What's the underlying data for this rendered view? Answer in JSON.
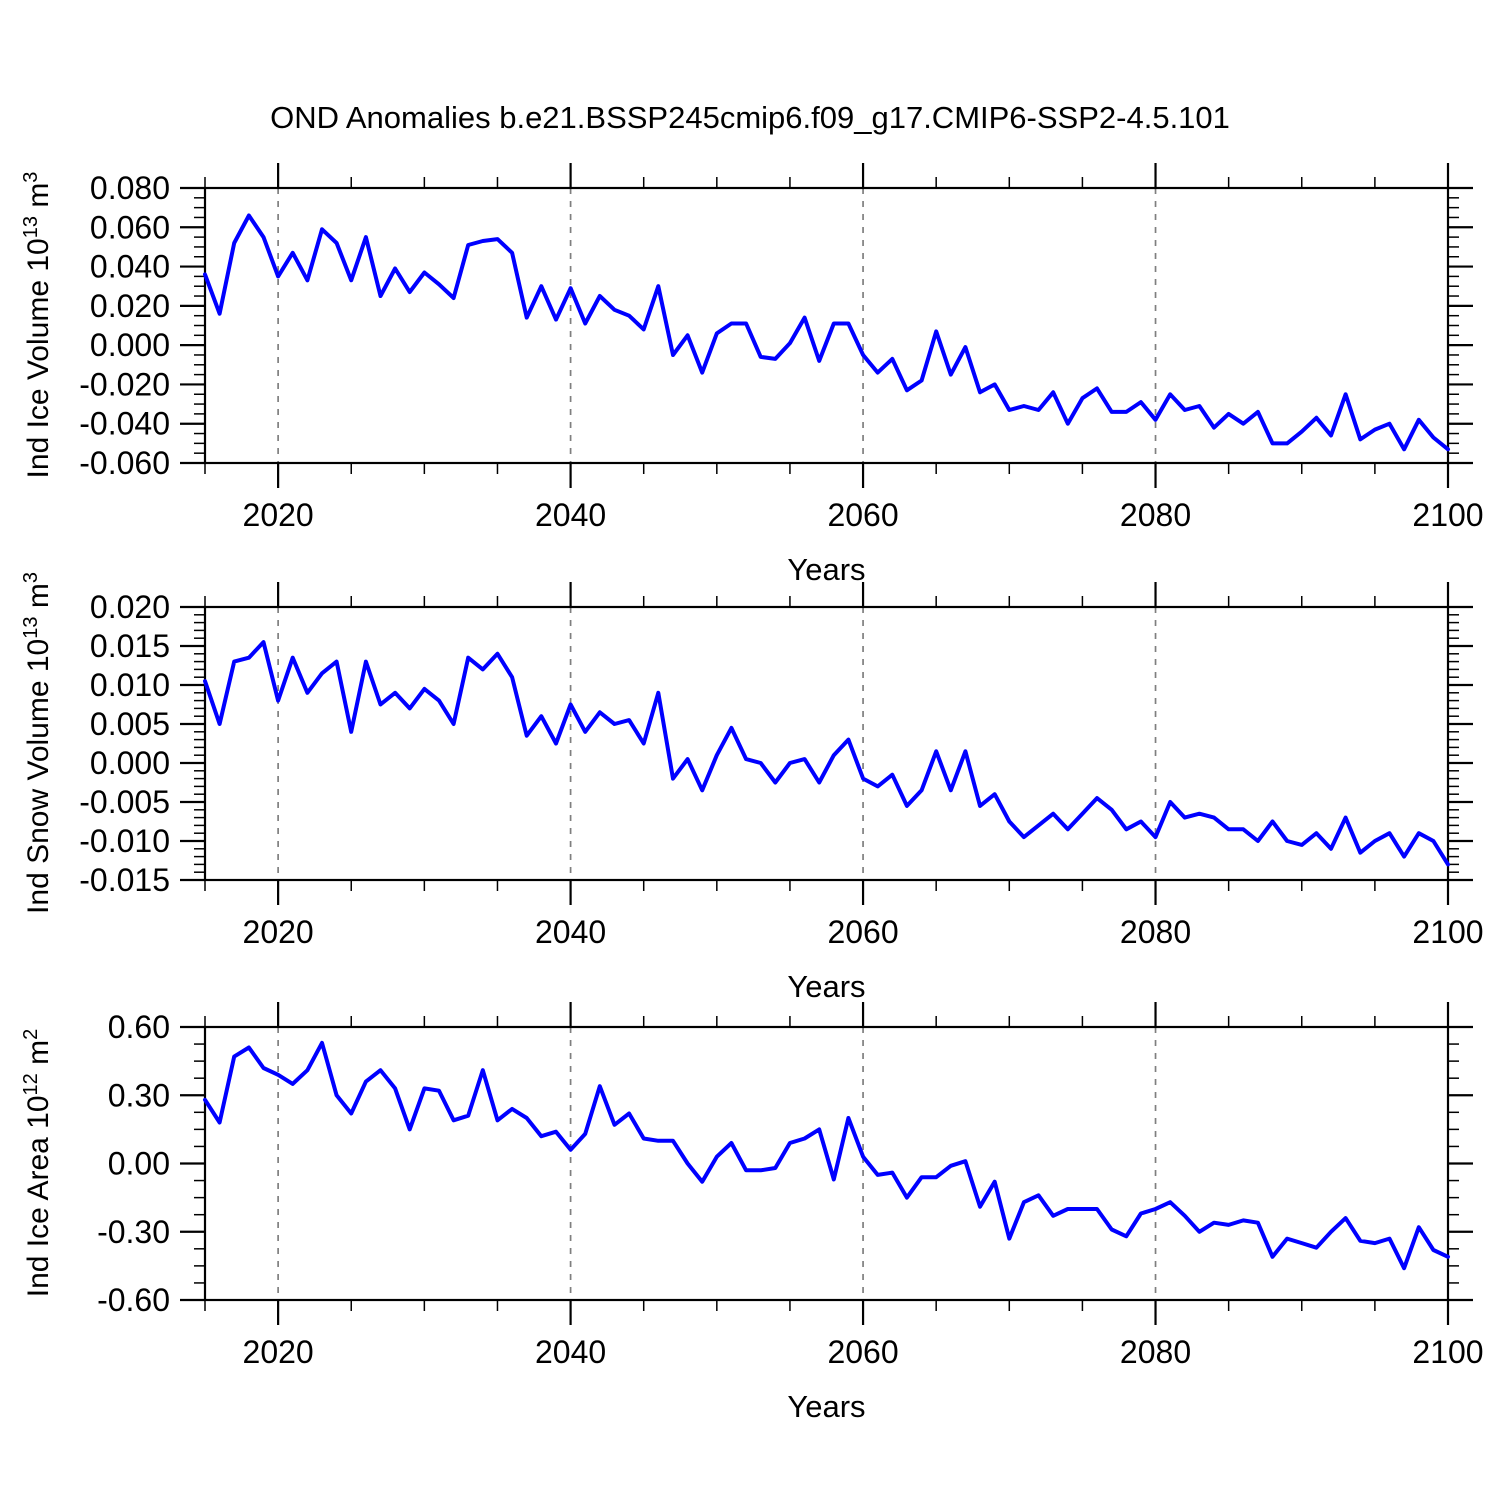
{
  "title": "OND Anomalies b.e21.BSSP245cmip6.f09_g17.CMIP6-SSP2-4.5.101",
  "colors": {
    "line": "#0000FF",
    "axis": "#000000",
    "grid": "#7F7F7F",
    "background": "#FFFFFF"
  },
  "chart_data": [
    {
      "type": "line",
      "ylabel_text": "Ind Ice Volume 10^13 m^3",
      "ylabel_prefix": "Ind Ice Volume 10",
      "ylabel_sup1": "13",
      "ylabel_mid": " m",
      "ylabel_sup2": "3",
      "xlabel": "Years",
      "x_start": 2015,
      "x_end": 2100,
      "xticks": [
        2020,
        2040,
        2060,
        2080,
        2100
      ],
      "xtick_labels": [
        "2020",
        "2040",
        "2060",
        "2080",
        "2100"
      ],
      "xtick_minor_step": 5,
      "grid_x": [
        2020,
        2040,
        2060,
        2080
      ],
      "ylim": [
        -0.06,
        0.08
      ],
      "yticks": [
        0.08,
        0.06,
        0.04,
        0.02,
        0.0,
        -0.02,
        -0.04,
        -0.06
      ],
      "ytick_labels": [
        "0.080",
        "0.060",
        "0.040",
        "0.020",
        "0.000",
        "-0.020",
        "-0.040",
        "-0.060"
      ],
      "yminor_step": 0.005,
      "values": [
        0.036,
        0.016,
        0.052,
        0.066,
        0.055,
        0.035,
        0.047,
        0.033,
        0.059,
        0.052,
        0.033,
        0.055,
        0.025,
        0.039,
        0.027,
        0.037,
        0.031,
        0.024,
        0.051,
        0.053,
        0.054,
        0.047,
        0.014,
        0.03,
        0.013,
        0.029,
        0.011,
        0.025,
        0.018,
        0.015,
        0.008,
        0.03,
        -0.005,
        0.005,
        -0.014,
        0.006,
        0.011,
        0.011,
        -0.006,
        -0.007,
        0.001,
        0.014,
        -0.008,
        0.011,
        0.011,
        -0.005,
        -0.014,
        -0.007,
        -0.023,
        -0.018,
        0.007,
        -0.015,
        -0.001,
        -0.024,
        -0.02,
        -0.033,
        -0.031,
        -0.033,
        -0.024,
        -0.04,
        -0.027,
        -0.022,
        -0.034,
        -0.034,
        -0.029,
        -0.038,
        -0.025,
        -0.033,
        -0.031,
        -0.042,
        -0.035,
        -0.04,
        -0.034,
        -0.05,
        -0.05,
        -0.044,
        -0.037,
        -0.046,
        -0.025,
        -0.048,
        -0.043,
        -0.04,
        -0.053,
        -0.038,
        -0.047,
        -0.053
      ]
    },
    {
      "type": "line",
      "ylabel_text": "Ind Snow Volume 10^13 m^3",
      "ylabel_prefix": "Ind Snow Volume 10",
      "ylabel_sup1": "13",
      "ylabel_mid": " m",
      "ylabel_sup2": "3",
      "xlabel": "Years",
      "x_start": 2015,
      "x_end": 2100,
      "xticks": [
        2020,
        2040,
        2060,
        2080,
        2100
      ],
      "xtick_labels": [
        "2020",
        "2040",
        "2060",
        "2080",
        "2100"
      ],
      "xtick_minor_step": 5,
      "grid_x": [
        2020,
        2040,
        2060,
        2080
      ],
      "ylim": [
        -0.015,
        0.02
      ],
      "yticks": [
        0.02,
        0.015,
        0.01,
        0.005,
        0.0,
        -0.005,
        -0.01,
        -0.015
      ],
      "ytick_labels": [
        "0.020",
        "0.015",
        "0.010",
        "0.005",
        "0.000",
        "-0.005",
        "-0.010",
        "-0.015"
      ],
      "yminor_step": 0.001,
      "values": [
        0.0105,
        0.005,
        0.013,
        0.0135,
        0.0155,
        0.008,
        0.0135,
        0.009,
        0.0115,
        0.013,
        0.004,
        0.013,
        0.0075,
        0.009,
        0.007,
        0.0095,
        0.008,
        0.005,
        0.0135,
        0.012,
        0.014,
        0.011,
        0.0035,
        0.006,
        0.0025,
        0.0075,
        0.004,
        0.0065,
        0.005,
        0.0055,
        0.0025,
        0.009,
        -0.002,
        0.0005,
        -0.0035,
        0.001,
        0.0045,
        0.0005,
        0.0,
        -0.0025,
        0.0,
        0.0005,
        -0.0025,
        0.001,
        0.003,
        -0.002,
        -0.003,
        -0.0015,
        -0.0055,
        -0.0035,
        0.0015,
        -0.0035,
        0.0015,
        -0.0055,
        -0.004,
        -0.0075,
        -0.0095,
        -0.008,
        -0.0065,
        -0.0085,
        -0.0065,
        -0.0045,
        -0.006,
        -0.0085,
        -0.0075,
        -0.0095,
        -0.005,
        -0.007,
        -0.0065,
        -0.007,
        -0.0085,
        -0.0085,
        -0.01,
        -0.0075,
        -0.01,
        -0.0105,
        -0.009,
        -0.011,
        -0.007,
        -0.0115,
        -0.01,
        -0.009,
        -0.012,
        -0.009,
        -0.01,
        -0.013
      ]
    },
    {
      "type": "line",
      "ylabel_text": "Ind Ice Area 10^12 m^2",
      "ylabel_prefix": "Ind Ice Area 10",
      "ylabel_sup1": "12",
      "ylabel_mid": " m",
      "ylabel_sup2": "2",
      "xlabel": "Years",
      "x_start": 2015,
      "x_end": 2100,
      "xticks": [
        2020,
        2040,
        2060,
        2080,
        2100
      ],
      "xtick_labels": [
        "2020",
        "2040",
        "2060",
        "2080",
        "2100"
      ],
      "xtick_minor_step": 5,
      "grid_x": [
        2020,
        2040,
        2060,
        2080
      ],
      "ylim": [
        -0.6,
        0.6
      ],
      "yticks": [
        0.6,
        0.3,
        0.0,
        -0.3,
        -0.6
      ],
      "ytick_labels": [
        "0.60",
        "0.30",
        "0.00",
        "-0.30",
        "-0.60"
      ],
      "yminor_step": 0.075,
      "values": [
        0.28,
        0.18,
        0.47,
        0.51,
        0.42,
        0.39,
        0.35,
        0.41,
        0.53,
        0.3,
        0.22,
        0.36,
        0.41,
        0.33,
        0.15,
        0.33,
        0.32,
        0.19,
        0.21,
        0.41,
        0.19,
        0.24,
        0.2,
        0.12,
        0.14,
        0.06,
        0.13,
        0.34,
        0.17,
        0.22,
        0.11,
        0.1,
        0.1,
        0.0,
        -0.08,
        0.03,
        0.09,
        -0.03,
        -0.03,
        -0.02,
        0.09,
        0.11,
        0.15,
        -0.07,
        0.2,
        0.03,
        -0.05,
        -0.04,
        -0.15,
        -0.06,
        -0.06,
        -0.01,
        0.01,
        -0.19,
        -0.08,
        -0.33,
        -0.17,
        -0.14,
        -0.23,
        -0.2,
        -0.2,
        -0.2,
        -0.29,
        -0.32,
        -0.22,
        -0.2,
        -0.17,
        -0.23,
        -0.3,
        -0.26,
        -0.27,
        -0.25,
        -0.26,
        -0.41,
        -0.33,
        -0.35,
        -0.37,
        -0.3,
        -0.24,
        -0.34,
        -0.35,
        -0.33,
        -0.46,
        -0.28,
        -0.38,
        -0.41
      ]
    }
  ]
}
